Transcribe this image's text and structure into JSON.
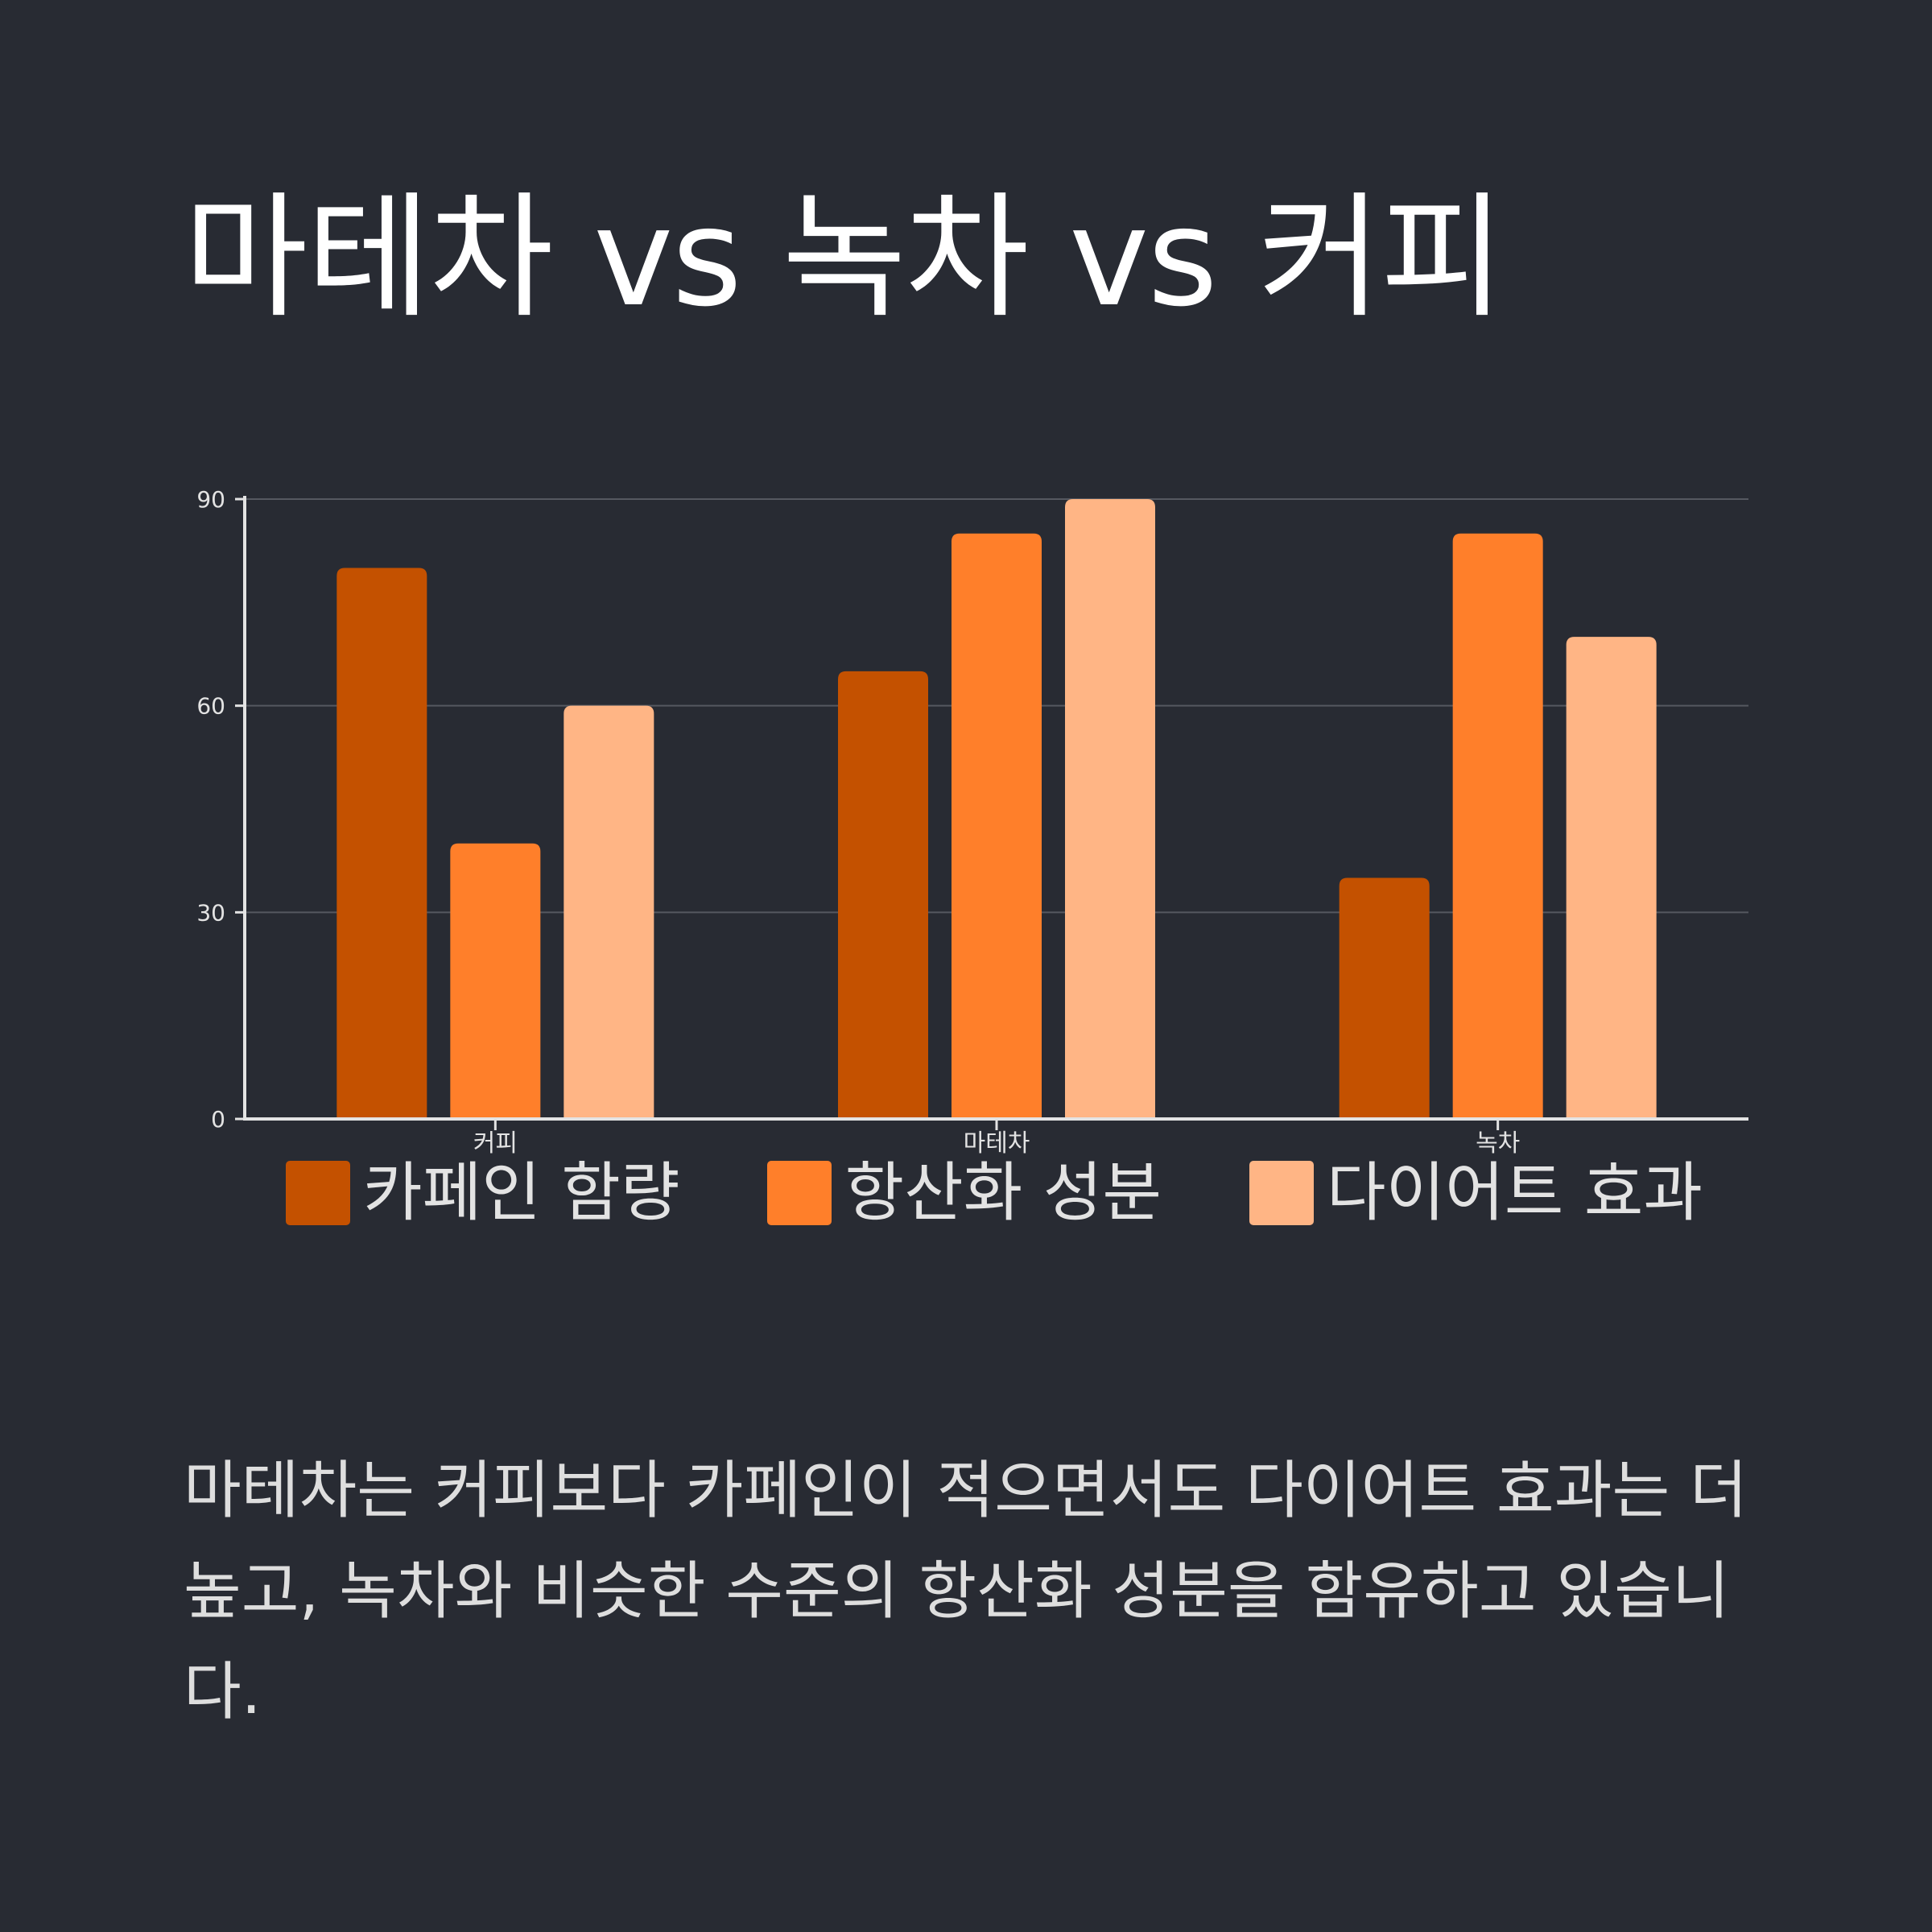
{
  "title": "마테차 vs 녹차 vs 커피",
  "description": "마테차는 커피보다 카페인이 적으면서도 다이어트 효과는 더 높고, 녹차와 비슷한 수준의 항산화 성분을 함유하고 있습니다.",
  "colors": {
    "background": "#282b33",
    "series": [
      "#c45100",
      "#ff7f2a",
      "#ffb585"
    ],
    "grid": "#555860",
    "axis": "#e3e3e3"
  },
  "chart_data": {
    "type": "bar",
    "categories": [
      "커피",
      "마테차",
      "녹차"
    ],
    "series": [
      {
        "name": "카페인 함량",
        "values": [
          80,
          65,
          35
        ]
      },
      {
        "name": "항산화 성분",
        "values": [
          40,
          85,
          85
        ]
      },
      {
        "name": "다이어트 효과",
        "values": [
          60,
          90,
          70
        ]
      }
    ],
    "ylim": [
      0,
      90
    ],
    "yticks": [
      0,
      30,
      60,
      90
    ],
    "grid": true,
    "legend_position": "bottom"
  }
}
